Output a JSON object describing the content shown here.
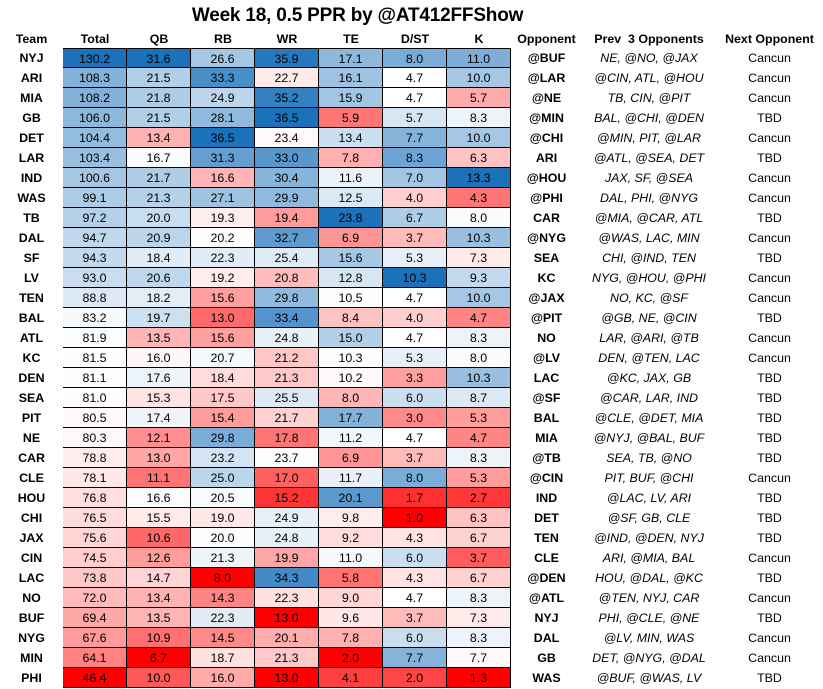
{
  "title": "Week 18, 0.5 PPR by @AT412FFShow",
  "columns": [
    "Team",
    "Total",
    "QB",
    "RB",
    "WR",
    "TE",
    "D/ST",
    "K",
    "Opponent",
    "Prev  3 Opponents",
    "Next Opponent"
  ],
  "colors": {
    "scale_low": "#FF0000",
    "scale_mid": "#FFFFFF",
    "scale_high": "#1C72BA",
    "grid_border": "#000000",
    "text": "#000000"
  },
  "chart_data": {
    "type": "table",
    "subtype": "heatmap",
    "title": "Week 18, 0.5 PPR by @AT412FFShow",
    "heatmap_columns": [
      "Total",
      "QB",
      "RB",
      "WR",
      "TE",
      "D/ST",
      "K"
    ],
    "color_scale": "3-color per column: min=red, 50th percentile=white, max=blue",
    "rows": [
      {
        "team": "NYJ",
        "total": "130.2",
        "qb": "31.6",
        "rb": "26.6",
        "wr": "35.9",
        "te": "17.1",
        "dst": "8.0",
        "k": "11.0",
        "opponent": "@BUF",
        "prev3": "NE, @NO, @JAX",
        "next": "Cancun"
      },
      {
        "team": "ARI",
        "total": "108.3",
        "qb": "21.5",
        "rb": "33.3",
        "wr": "22.7",
        "te": "16.1",
        "dst": "4.7",
        "k": "10.0",
        "opponent": "@LAR",
        "prev3": "@CIN, ATL, @HOU",
        "next": "Cancun"
      },
      {
        "team": "MIA",
        "total": "108.2",
        "qb": "21.8",
        "rb": "24.9",
        "wr": "35.2",
        "te": "15.9",
        "dst": "4.7",
        "k": "5.7",
        "opponent": "@NE",
        "prev3": "TB, CIN, @PIT",
        "next": "Cancun"
      },
      {
        "team": "GB",
        "total": "106.0",
        "qb": "21.5",
        "rb": "28.1",
        "wr": "36.5",
        "te": "5.9",
        "dst": "5.7",
        "k": "8.3",
        "opponent": "@MIN",
        "prev3": "BAL, @CHI, @DEN",
        "next": "TBD"
      },
      {
        "team": "DET",
        "total": "104.4",
        "qb": "13.4",
        "rb": "36.5",
        "wr": "23.4",
        "te": "13.4",
        "dst": "7.7",
        "k": "10.0",
        "opponent": "@CHI",
        "prev3": "@MIN, PIT, @LAR",
        "next": "Cancun"
      },
      {
        "team": "LAR",
        "total": "103.4",
        "qb": "16.7",
        "rb": "31.3",
        "wr": "33.0",
        "te": "7.8",
        "dst": "8.3",
        "k": "6.3",
        "opponent": "ARI",
        "prev3": "@ATL, @SEA, DET",
        "next": "TBD"
      },
      {
        "team": "IND",
        "total": "100.6",
        "qb": "21.7",
        "rb": "16.6",
        "wr": "30.4",
        "te": "11.6",
        "dst": "7.0",
        "k": "13.3",
        "opponent": "@HOU",
        "prev3": "JAX, SF, @SEA",
        "next": "Cancun"
      },
      {
        "team": "WAS",
        "total": "99.1",
        "qb": "21.3",
        "rb": "27.1",
        "wr": "29.9",
        "te": "12.5",
        "dst": "4.0",
        "k": "4.3",
        "opponent": "@PHI",
        "prev3": "DAL, PHI, @NYG",
        "next": "Cancun"
      },
      {
        "team": "TB",
        "total": "97.2",
        "qb": "20.0",
        "rb": "19.3",
        "wr": "19.4",
        "te": "23.8",
        "dst": "6.7",
        "k": "8.0",
        "opponent": "CAR",
        "prev3": "@MIA, @CAR, ATL",
        "next": "TBD"
      },
      {
        "team": "DAL",
        "total": "94.7",
        "qb": "20.9",
        "rb": "20.2",
        "wr": "32.7",
        "te": "6.9",
        "dst": "3.7",
        "k": "10.3",
        "opponent": "@NYG",
        "prev3": "@WAS, LAC, MIN",
        "next": "Cancun"
      },
      {
        "team": "SF",
        "total": "94.3",
        "qb": "18.4",
        "rb": "22.3",
        "wr": "25.4",
        "te": "15.6",
        "dst": "5.3",
        "k": "7.3",
        "opponent": "SEA",
        "prev3": "CHI, @IND, TEN",
        "next": "TBD"
      },
      {
        "team": "LV",
        "total": "93.0",
        "qb": "20.6",
        "rb": "19.2",
        "wr": "20.8",
        "te": "12.8",
        "dst": "10.3",
        "k": "9.3",
        "opponent": "KC",
        "prev3": "NYG, @HOU, @PHI",
        "next": "Cancun"
      },
      {
        "team": "TEN",
        "total": "88.8",
        "qb": "18.2",
        "rb": "15.6",
        "wr": "29.8",
        "te": "10.5",
        "dst": "4.7",
        "k": "10.0",
        "opponent": "@JAX",
        "prev3": "NO, KC, @SF",
        "next": "Cancun"
      },
      {
        "team": "BAL",
        "total": "83.2",
        "qb": "19.7",
        "rb": "13.0",
        "wr": "33.4",
        "te": "8.4",
        "dst": "4.0",
        "k": "4.7",
        "opponent": "@PIT",
        "prev3": "@GB, NE, @CIN",
        "next": "TBD"
      },
      {
        "team": "ATL",
        "total": "81.9",
        "qb": "13.5",
        "rb": "15.6",
        "wr": "24.8",
        "te": "15.0",
        "dst": "4.7",
        "k": "8.3",
        "opponent": "NO",
        "prev3": "LAR, @ARI, @TB",
        "next": "Cancun"
      },
      {
        "team": "KC",
        "total": "81.5",
        "qb": "16.0",
        "rb": "20.7",
        "wr": "21.2",
        "te": "10.3",
        "dst": "5.3",
        "k": "8.0",
        "opponent": "@LV",
        "prev3": "DEN, @TEN, LAC",
        "next": "Cancun"
      },
      {
        "team": "DEN",
        "total": "81.1",
        "qb": "17.6",
        "rb": "18.4",
        "wr": "21.3",
        "te": "10.2",
        "dst": "3.3",
        "k": "10.3",
        "opponent": "LAC",
        "prev3": "@KC, JAX, GB",
        "next": "TBD"
      },
      {
        "team": "SEA",
        "total": "81.0",
        "qb": "15.3",
        "rb": "17.5",
        "wr": "25.5",
        "te": "8.0",
        "dst": "6.0",
        "k": "8.7",
        "opponent": "@SF",
        "prev3": "@CAR, LAR, IND",
        "next": "TBD"
      },
      {
        "team": "PIT",
        "total": "80.5",
        "qb": "17.4",
        "rb": "15.4",
        "wr": "21.7",
        "te": "17.7",
        "dst": "3.0",
        "k": "5.3",
        "opponent": "BAL",
        "prev3": "@CLE, @DET, MIA",
        "next": "TBD"
      },
      {
        "team": "NE",
        "total": "80.3",
        "qb": "12.1",
        "rb": "29.8",
        "wr": "17.8",
        "te": "11.2",
        "dst": "4.7",
        "k": "4.7",
        "opponent": "MIA",
        "prev3": "@NYJ, @BAL, BUF",
        "next": "TBD"
      },
      {
        "team": "CAR",
        "total": "78.8",
        "qb": "13.0",
        "rb": "23.2",
        "wr": "23.7",
        "te": "6.9",
        "dst": "3.7",
        "k": "8.3",
        "opponent": "@TB",
        "prev3": "SEA, TB, @NO",
        "next": "TBD"
      },
      {
        "team": "CLE",
        "total": "78.1",
        "qb": "11.1",
        "rb": "25.0",
        "wr": "17.0",
        "te": "11.7",
        "dst": "8.0",
        "k": "5.3",
        "opponent": "@CIN",
        "prev3": "PIT, BUF, @CHI",
        "next": "Cancun"
      },
      {
        "team": "HOU",
        "total": "76.8",
        "qb": "16.6",
        "rb": "20.5",
        "wr": "15.2",
        "te": "20.1",
        "dst": "1.7",
        "k": "2.7",
        "opponent": "IND",
        "prev3": "@LAC, LV, ARI",
        "next": "TBD"
      },
      {
        "team": "CHI",
        "total": "76.5",
        "qb": "15.5",
        "rb": "19.0",
        "wr": "24.9",
        "te": "9.8",
        "dst": "1.0",
        "k": "6.3",
        "opponent": "DET",
        "prev3": "@SF, GB, CLE",
        "next": "TBD"
      },
      {
        "team": "JAX",
        "total": "75.6",
        "qb": "10.6",
        "rb": "20.0",
        "wr": "24.8",
        "te": "9.2",
        "dst": "4.3",
        "k": "6.7",
        "opponent": "TEN",
        "prev3": "@IND, @DEN, NYJ",
        "next": "TBD"
      },
      {
        "team": "CIN",
        "total": "74.5",
        "qb": "12.6",
        "rb": "21.3",
        "wr": "19.9",
        "te": "11.0",
        "dst": "6.0",
        "k": "3.7",
        "opponent": "CLE",
        "prev3": "ARI, @MIA, BAL",
        "next": "Cancun"
      },
      {
        "team": "LAC",
        "total": "73.8",
        "qb": "14.7",
        "rb": "8.0",
        "wr": "34.3",
        "te": "5.8",
        "dst": "4.3",
        "k": "6.7",
        "opponent": "@DEN",
        "prev3": "HOU, @DAL, @KC",
        "next": "TBD"
      },
      {
        "team": "NO",
        "total": "72.0",
        "qb": "13.4",
        "rb": "14.3",
        "wr": "22.3",
        "te": "9.0",
        "dst": "4.7",
        "k": "8.3",
        "opponent": "@ATL",
        "prev3": "@TEN, NYJ, CAR",
        "next": "Cancun"
      },
      {
        "team": "BUF",
        "total": "69.4",
        "qb": "13.5",
        "rb": "22.3",
        "wr": "13.0",
        "te": "9.6",
        "dst": "3.7",
        "k": "7.3",
        "opponent": "NYJ",
        "prev3": "PHI, @CLE, @NE",
        "next": "TBD"
      },
      {
        "team": "NYG",
        "total": "67.6",
        "qb": "10.9",
        "rb": "14.5",
        "wr": "20.1",
        "te": "7.8",
        "dst": "6.0",
        "k": "8.3",
        "opponent": "DAL",
        "prev3": "@LV, MIN, WAS",
        "next": "Cancun"
      },
      {
        "team": "MIN",
        "total": "64.1",
        "qb": "6.7",
        "rb": "18.7",
        "wr": "21.3",
        "te": "2.0",
        "dst": "7.7",
        "k": "7.7",
        "opponent": "GB",
        "prev3": "DET, @NYG, @DAL",
        "next": "Cancun"
      },
      {
        "team": "PHI",
        "total": "46.4",
        "qb": "10.0",
        "rb": "16.0",
        "wr": "13.0",
        "te": "4.1",
        "dst": "2.0",
        "k": "1.3",
        "opponent": "WAS",
        "prev3": "@BUF, @WAS, LV",
        "next": "TBD"
      }
    ]
  }
}
